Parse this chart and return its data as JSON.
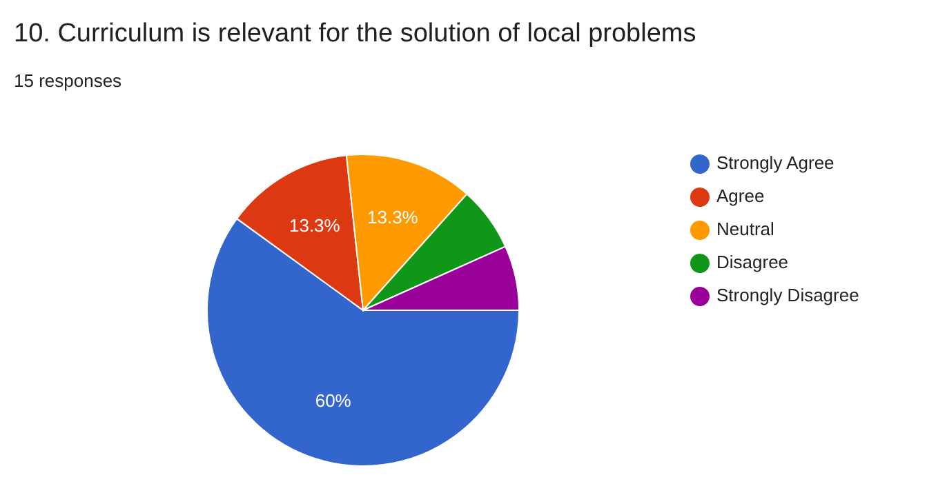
{
  "chart_data": {
    "type": "pie",
    "title": "10. Curriculum is relevant for the solution of local problems",
    "subtitle": "15 responses",
    "categories": [
      "Strongly Agree",
      "Agree",
      "Neutral",
      "Disagree",
      "Strongly Disagree"
    ],
    "values": [
      60,
      13.3,
      13.3,
      6.7,
      6.7
    ],
    "colors": [
      "#3366cc",
      "#dc3912",
      "#ff9900",
      "#109618",
      "#990099"
    ],
    "value_labels": [
      "60%",
      "13.3%",
      "13.3%",
      null,
      null
    ],
    "legend": "right"
  }
}
